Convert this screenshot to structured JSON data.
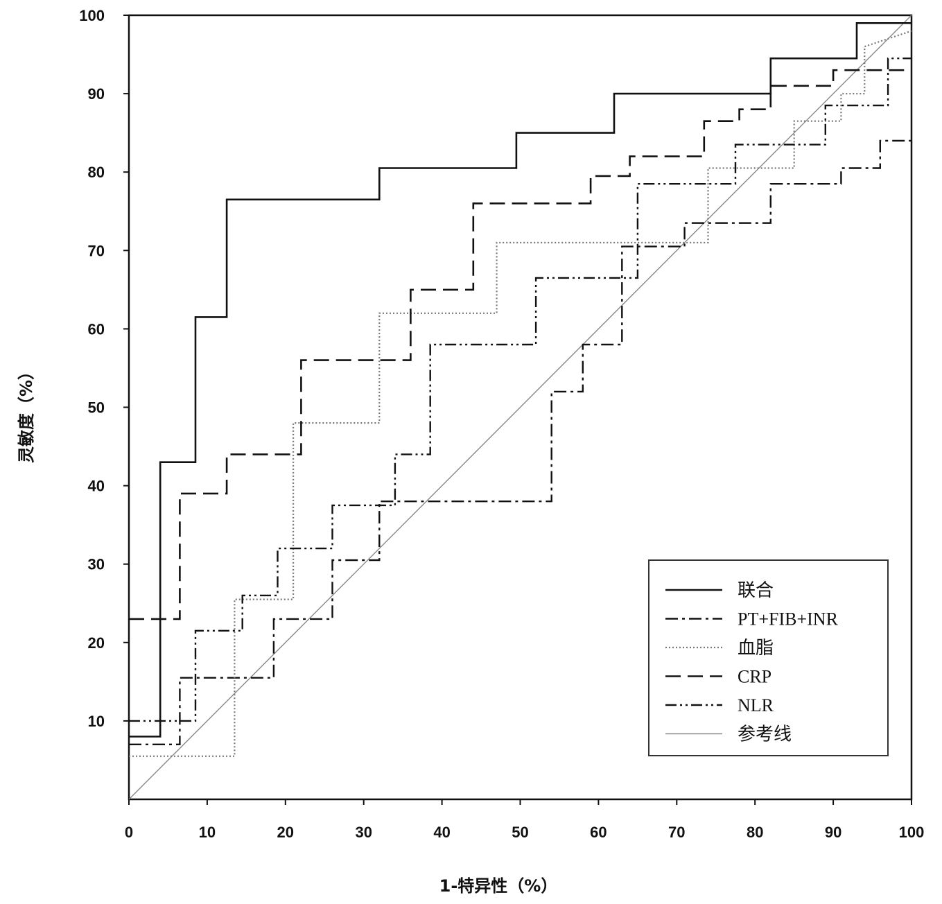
{
  "chart_data": {
    "type": "line",
    "title": "",
    "xlabel": "1-特异性（%）",
    "ylabel": "灵敏度（%）",
    "xlim": [
      0,
      100
    ],
    "ylim": [
      0,
      100
    ],
    "xticks": [
      "0",
      "10",
      "20",
      "30",
      "40",
      "50",
      "60",
      "70",
      "80",
      "90",
      "100"
    ],
    "yticks": [
      "10",
      "20",
      "30",
      "40",
      "50",
      "60",
      "70",
      "80",
      "90",
      "100"
    ],
    "legend_position": "bottom-right",
    "series": [
      {
        "name": "联合",
        "style": "solid",
        "color": "#111111",
        "x": [
          0,
          4,
          4,
          8.5,
          8.5,
          12.5,
          12.5,
          32,
          32,
          49.5,
          49.5,
          62,
          62,
          82,
          82,
          93,
          93,
          100
        ],
        "y": [
          8,
          8,
          43,
          43,
          61.5,
          61.5,
          76.5,
          76.5,
          80.5,
          80.5,
          85,
          85,
          90,
          90,
          94.5,
          94.5,
          99,
          99
        ]
      },
      {
        "name": "PT+FIB+INR",
        "style": "dashdot",
        "color": "#111111",
        "x": [
          0,
          6.5,
          6.5,
          18.5,
          18.5,
          26,
          26,
          32,
          32,
          54,
          54,
          58,
          58,
          63,
          63,
          71,
          71,
          82,
          82,
          91,
          91,
          96,
          96,
          100
        ],
        "y": [
          7,
          7,
          15.5,
          15.5,
          23,
          23,
          30.5,
          30.5,
          38,
          38,
          52,
          52,
          58,
          58,
          70.5,
          70.5,
          73.5,
          73.5,
          78.5,
          78.5,
          80.5,
          80.5,
          84,
          84
        ]
      },
      {
        "name": "血脂",
        "style": "dotted",
        "color": "#777777",
        "x": [
          0,
          13.5,
          13.5,
          21,
          21,
          32,
          32,
          47,
          47,
          74,
          74,
          85,
          85,
          91,
          91,
          94,
          94,
          100
        ],
        "y": [
          5.5,
          5.5,
          25.5,
          25.5,
          48,
          48,
          62,
          62,
          71,
          71,
          80.5,
          80.5,
          86.5,
          86.5,
          90,
          90,
          96,
          98
        ]
      },
      {
        "name": "CRP",
        "style": "dashed",
        "color": "#111111",
        "x": [
          0,
          6.5,
          6.5,
          12.5,
          12.5,
          22,
          22,
          36,
          36,
          44,
          44,
          59,
          59,
          64,
          64,
          73.5,
          73.5,
          78,
          78,
          82,
          82,
          90,
          90,
          100
        ],
        "y": [
          23,
          23,
          39,
          39,
          44,
          44,
          56,
          56,
          65,
          65,
          76,
          76,
          79.5,
          79.5,
          82,
          82,
          86.5,
          86.5,
          88,
          88,
          91,
          91,
          93,
          93
        ]
      },
      {
        "name": "NLR",
        "style": "dashdotdot",
        "color": "#111111",
        "x": [
          0,
          8.5,
          8.5,
          14.5,
          14.5,
          19,
          19,
          26,
          26,
          34,
          34,
          38.5,
          38.5,
          52,
          52,
          65,
          65,
          77.5,
          77.5,
          89,
          89,
          97,
          97,
          100
        ],
        "y": [
          10,
          10,
          21.5,
          21.5,
          26,
          26,
          32,
          32,
          37.5,
          37.5,
          44,
          44,
          58,
          58,
          66.5,
          66.5,
          78.5,
          78.5,
          83.5,
          83.5,
          88.5,
          88.5,
          94.5,
          94.5
        ]
      },
      {
        "name": "参考线",
        "style": "reference",
        "color": "#888888",
        "x": [
          0,
          100
        ],
        "y": [
          0,
          100
        ]
      }
    ]
  }
}
